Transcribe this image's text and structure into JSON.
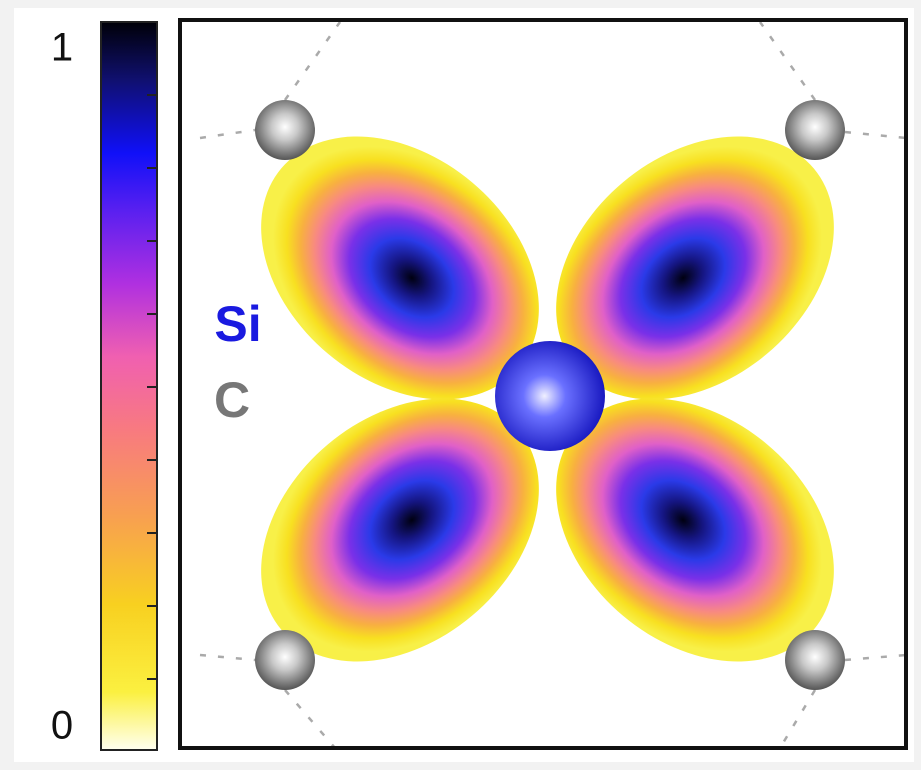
{
  "colorbar": {
    "ticks": [
      0,
      1
    ]
  },
  "legend": {
    "items": [
      {
        "label": "Si"
      },
      {
        "label": "C"
      }
    ]
  }
}
